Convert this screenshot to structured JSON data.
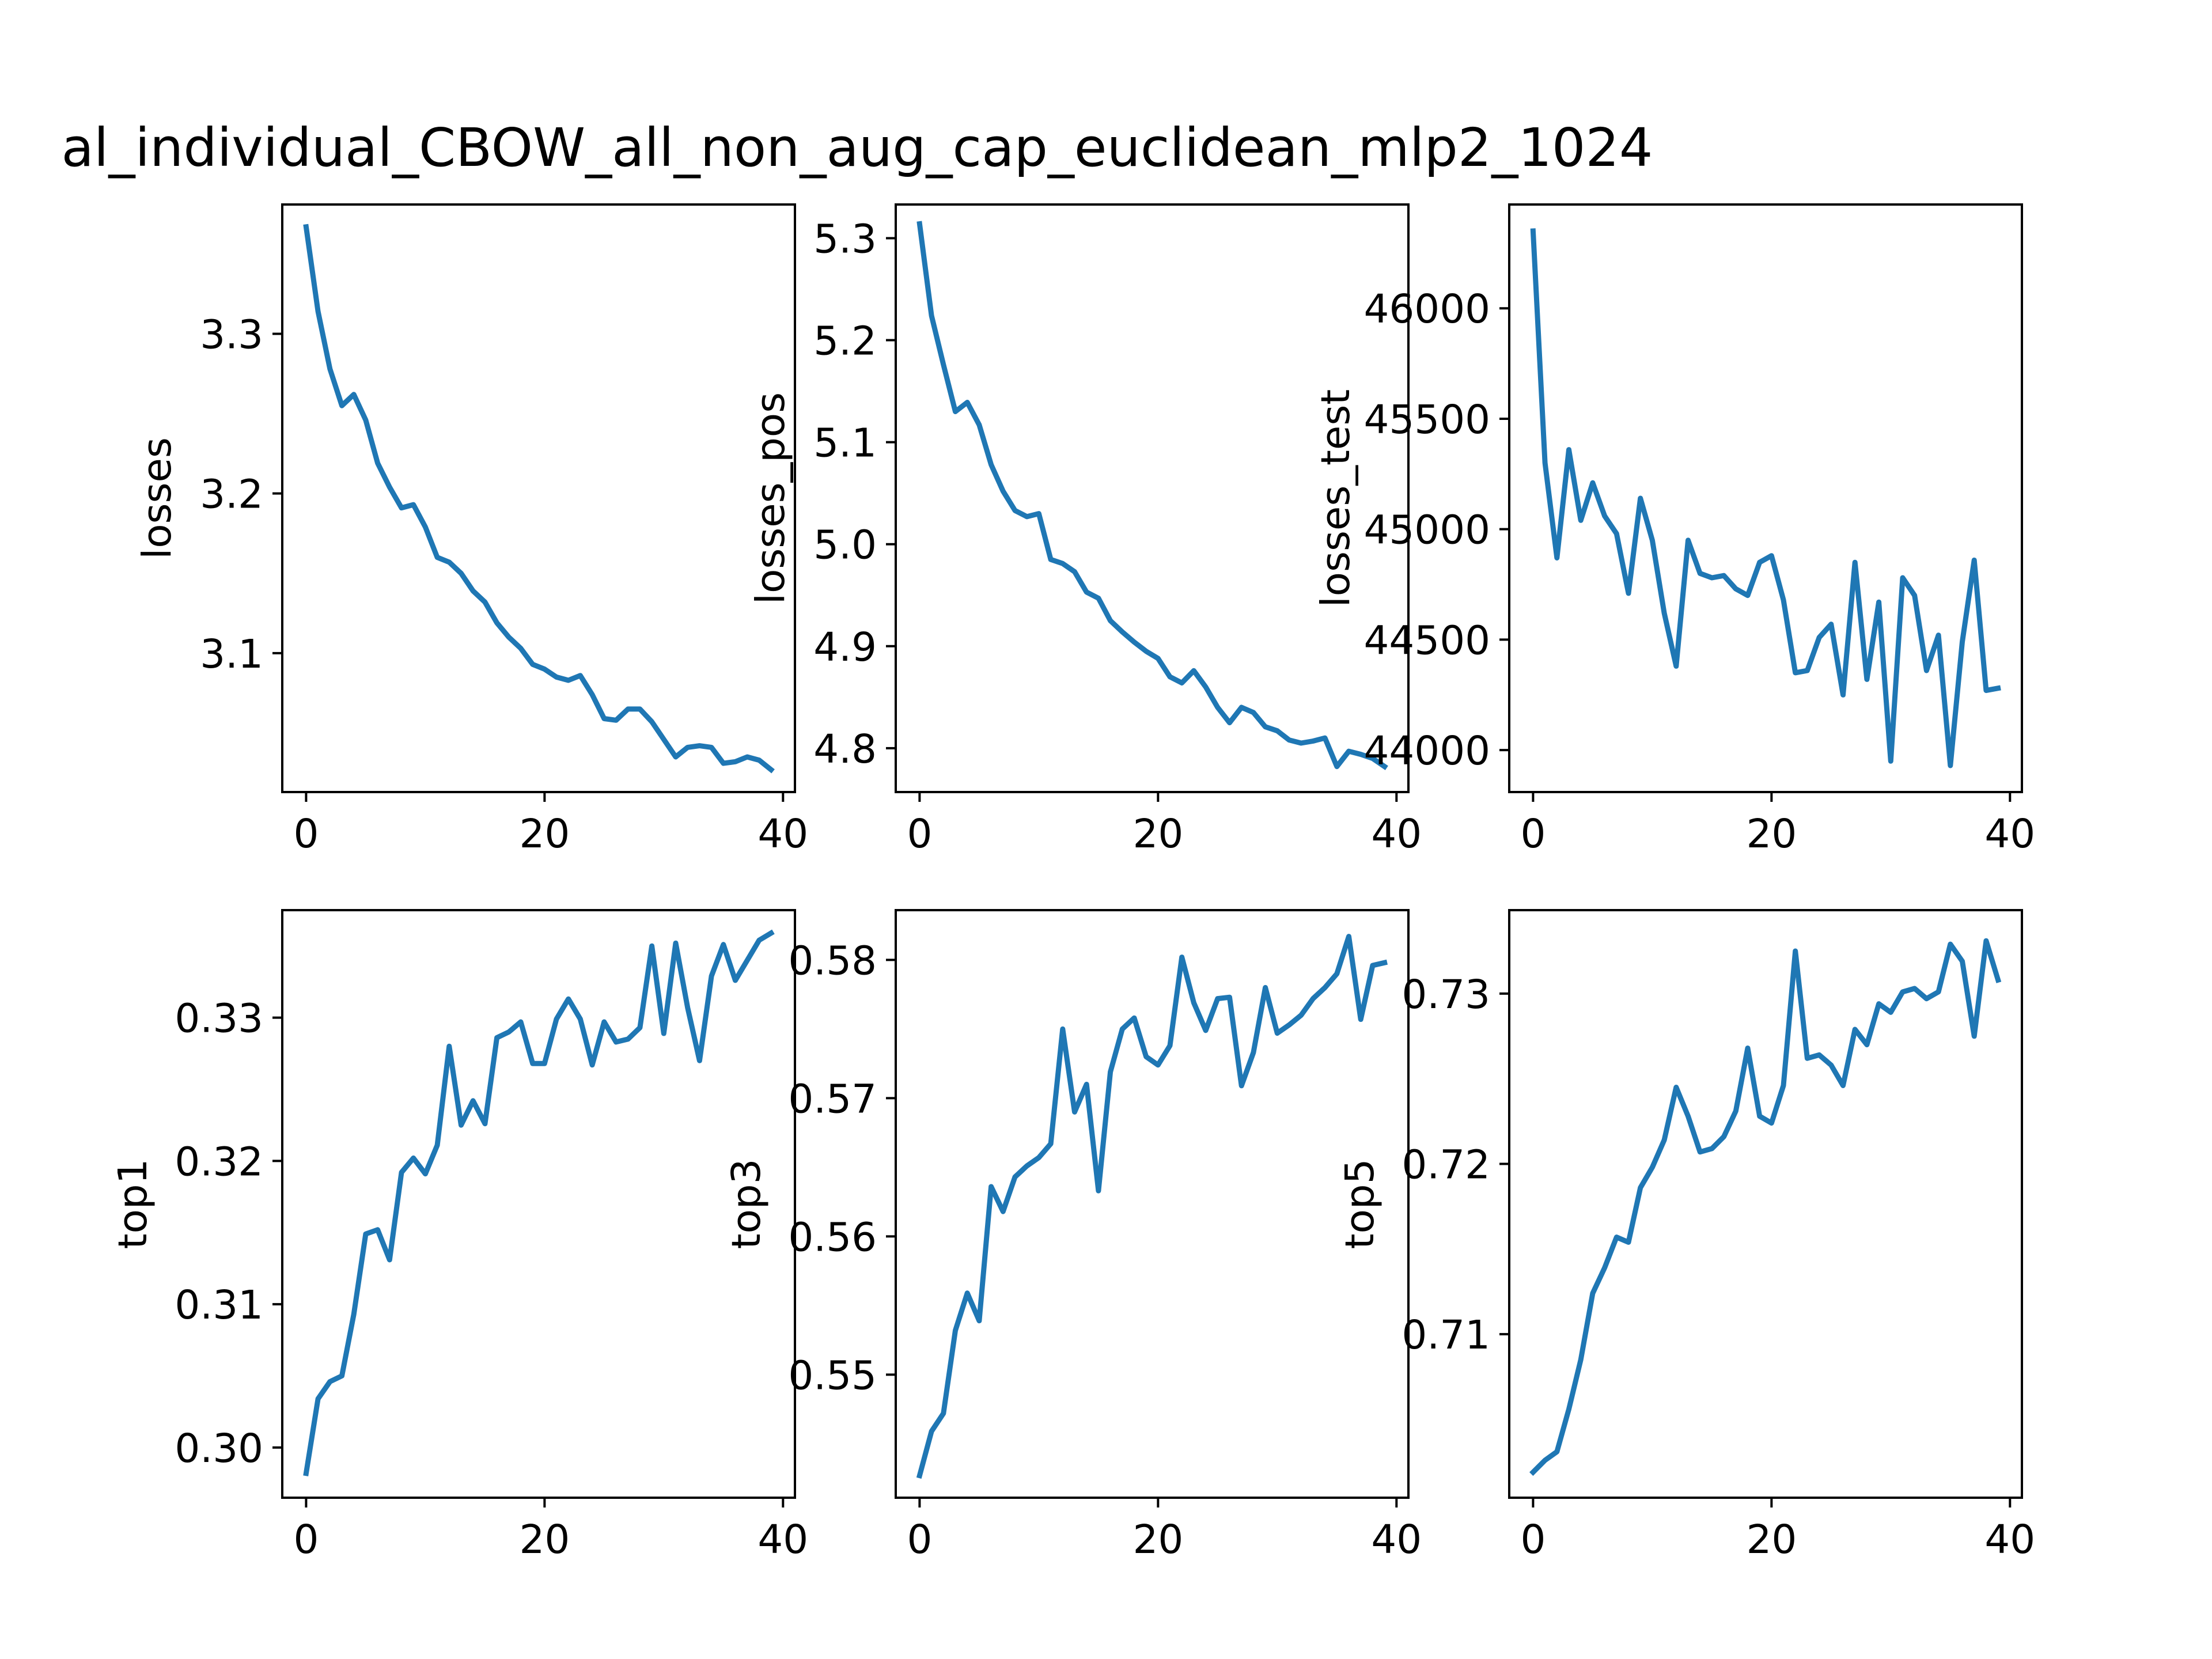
{
  "figure": {
    "title": "al_individual_CBOW_all_non_aug_cap_euclidean_mlp2_1024",
    "background": "#ffffff",
    "line_color": "#1f77b4"
  },
  "chart_data": [
    {
      "type": "line",
      "ylabel": "losses",
      "x": [
        0,
        1,
        2,
        3,
        4,
        5,
        6,
        7,
        8,
        9,
        10,
        11,
        12,
        13,
        14,
        15,
        16,
        17,
        18,
        19,
        20,
        21,
        22,
        23,
        24,
        25,
        26,
        27,
        28,
        29,
        30,
        31,
        32,
        33,
        34,
        35,
        36,
        37,
        38,
        39
      ],
      "values": [
        3.367,
        3.314,
        3.278,
        3.255,
        3.262,
        3.246,
        3.219,
        3.204,
        3.191,
        3.193,
        3.179,
        3.16,
        3.157,
        3.15,
        3.139,
        3.132,
        3.119,
        3.11,
        3.103,
        3.093,
        3.09,
        3.085,
        3.083,
        3.086,
        3.074,
        3.059,
        3.058,
        3.065,
        3.065,
        3.057,
        3.046,
        3.035,
        3.041,
        3.042,
        3.041,
        3.031,
        3.032,
        3.035,
        3.033,
        3.027
      ],
      "xlim": [
        -2,
        41
      ],
      "ylim": [
        3.013,
        3.381
      ],
      "xticks": [
        0,
        20,
        40
      ],
      "xtick_labels": [
        "0",
        "20",
        "40"
      ],
      "yticks": [
        3.1,
        3.2,
        3.3
      ],
      "ytick_labels": [
        "3.1",
        "3.2",
        "3.3"
      ],
      "grid": false
    },
    {
      "type": "line",
      "ylabel": "losses_pos",
      "x": [
        0,
        1,
        2,
        3,
        4,
        5,
        6,
        7,
        8,
        9,
        10,
        11,
        12,
        13,
        14,
        15,
        16,
        17,
        18,
        19,
        20,
        21,
        22,
        23,
        24,
        25,
        26,
        27,
        28,
        29,
        30,
        31,
        32,
        33,
        34,
        35,
        36,
        37,
        38,
        39
      ],
      "values": [
        5.314,
        5.224,
        5.176,
        5.13,
        5.139,
        5.117,
        5.078,
        5.052,
        5.033,
        5.027,
        5.03,
        4.985,
        4.981,
        4.973,
        4.953,
        4.947,
        4.925,
        4.914,
        4.904,
        4.895,
        4.888,
        4.87,
        4.864,
        4.876,
        4.86,
        4.84,
        4.825,
        4.84,
        4.835,
        4.821,
        4.817,
        4.808,
        4.805,
        4.807,
        4.81,
        4.782,
        4.797,
        4.794,
        4.79,
        4.782
      ],
      "xlim": [
        -2,
        41
      ],
      "ylim": [
        4.757,
        5.333
      ],
      "xticks": [
        0,
        20,
        40
      ],
      "xtick_labels": [
        "0",
        "20",
        "40"
      ],
      "yticks": [
        4.8,
        4.9,
        5.0,
        5.1,
        5.2,
        5.3
      ],
      "ytick_labels": [
        "4.8",
        "4.9",
        "5.0",
        "5.1",
        "5.2",
        "5.3"
      ],
      "grid": false
    },
    {
      "type": "line",
      "ylabel": "losses_test",
      "x": [
        0,
        1,
        2,
        3,
        4,
        5,
        6,
        7,
        8,
        9,
        10,
        11,
        12,
        13,
        14,
        15,
        16,
        17,
        18,
        19,
        20,
        21,
        22,
        23,
        24,
        25,
        26,
        27,
        28,
        29,
        30,
        31,
        32,
        33,
        34,
        35,
        36,
        37,
        38,
        39
      ],
      "values": [
        46350,
        45300,
        44870,
        45360,
        45040,
        45210,
        45060,
        44980,
        44710,
        45140,
        44950,
        44620,
        44380,
        44950,
        44800,
        44780,
        44790,
        44730,
        44700,
        44850,
        44880,
        44680,
        44350,
        44360,
        44510,
        44570,
        44250,
        44850,
        44320,
        44670,
        43950,
        44780,
        44700,
        44360,
        44520,
        43930,
        44490,
        44860,
        44270,
        44280
      ],
      "xlim": [
        -2,
        41
      ],
      "ylim": [
        43810,
        46470
      ],
      "xticks": [
        0,
        20,
        40
      ],
      "xtick_labels": [
        "0",
        "20",
        "40"
      ],
      "yticks": [
        44000,
        44500,
        45000,
        45500,
        46000
      ],
      "ytick_labels": [
        "44000",
        "44500",
        "45000",
        "45500",
        "46000"
      ],
      "grid": false
    },
    {
      "type": "line",
      "ylabel": "top1",
      "x": [
        0,
        1,
        2,
        3,
        4,
        5,
        6,
        7,
        8,
        9,
        10,
        11,
        12,
        13,
        14,
        15,
        16,
        17,
        18,
        19,
        20,
        21,
        22,
        23,
        24,
        25,
        26,
        27,
        28,
        29,
        30,
        31,
        32,
        33,
        34,
        35,
        36,
        37,
        38,
        39
      ],
      "values": [
        0.2982,
        0.3034,
        0.3046,
        0.305,
        0.3093,
        0.3149,
        0.3152,
        0.3131,
        0.3192,
        0.3202,
        0.3191,
        0.3211,
        0.328,
        0.3225,
        0.3242,
        0.3226,
        0.3286,
        0.329,
        0.3297,
        0.3268,
        0.3268,
        0.3299,
        0.3313,
        0.3299,
        0.3267,
        0.3297,
        0.3283,
        0.3285,
        0.3293,
        0.335,
        0.3289,
        0.3352,
        0.3307,
        0.327,
        0.3329,
        0.3351,
        0.3326,
        0.334,
        0.3354,
        0.3359
      ],
      "xlim": [
        -2,
        41
      ],
      "ylim": [
        0.2965,
        0.3375
      ],
      "xticks": [
        0,
        20,
        40
      ],
      "xtick_labels": [
        "0",
        "20",
        "40"
      ],
      "yticks": [
        0.3,
        0.31,
        0.32,
        0.33
      ],
      "ytick_labels": [
        "0.30",
        "0.31",
        "0.32",
        "0.33"
      ],
      "grid": false
    },
    {
      "type": "line",
      "ylabel": "top3",
      "x": [
        0,
        1,
        2,
        3,
        4,
        5,
        6,
        7,
        8,
        9,
        10,
        11,
        12,
        13,
        14,
        15,
        16,
        17,
        18,
        19,
        20,
        21,
        22,
        23,
        24,
        25,
        26,
        27,
        28,
        29,
        30,
        31,
        32,
        33,
        34,
        35,
        36,
        37,
        38,
        39
      ],
      "values": [
        0.5427,
        0.5459,
        0.5472,
        0.5532,
        0.5559,
        0.5539,
        0.5636,
        0.5618,
        0.5643,
        0.5651,
        0.5657,
        0.5667,
        0.575,
        0.569,
        0.571,
        0.5633,
        0.5719,
        0.575,
        0.5758,
        0.573,
        0.5724,
        0.5738,
        0.5802,
        0.5769,
        0.5749,
        0.5772,
        0.5773,
        0.5709,
        0.5733,
        0.578,
        0.5747,
        0.5753,
        0.576,
        0.5772,
        0.578,
        0.579,
        0.5817,
        0.5757,
        0.5796,
        0.5798
      ],
      "xlim": [
        -2,
        41
      ],
      "ylim": [
        0.5411,
        0.5836
      ],
      "xticks": [
        0,
        20,
        40
      ],
      "xtick_labels": [
        "0",
        "20",
        "40"
      ],
      "yticks": [
        0.55,
        0.56,
        0.57,
        0.58
      ],
      "ytick_labels": [
        "0.55",
        "0.56",
        "0.57",
        "0.58"
      ],
      "grid": false
    },
    {
      "type": "line",
      "ylabel": "top5",
      "x": [
        0,
        1,
        2,
        3,
        4,
        5,
        6,
        7,
        8,
        9,
        10,
        11,
        12,
        13,
        14,
        15,
        16,
        17,
        18,
        19,
        20,
        21,
        22,
        23,
        24,
        25,
        26,
        27,
        28,
        29,
        30,
        31,
        32,
        33,
        34,
        35,
        36,
        37,
        38,
        39
      ],
      "values": [
        0.7019,
        0.7026,
        0.7031,
        0.7056,
        0.7085,
        0.7124,
        0.7139,
        0.7157,
        0.7154,
        0.7186,
        0.7198,
        0.7214,
        0.7245,
        0.7228,
        0.7207,
        0.7209,
        0.7216,
        0.7231,
        0.7268,
        0.7228,
        0.7224,
        0.7246,
        0.7325,
        0.7262,
        0.7264,
        0.7258,
        0.7246,
        0.7279,
        0.727,
        0.7294,
        0.7289,
        0.7301,
        0.7303,
        0.7297,
        0.7301,
        0.7329,
        0.7319,
        0.7275,
        0.7331,
        0.7308
      ],
      "xlim": [
        -2,
        41
      ],
      "ylim": [
        0.7004,
        0.7349
      ],
      "xticks": [
        0,
        20,
        40
      ],
      "xtick_labels": [
        "0",
        "20",
        "40"
      ],
      "yticks": [
        0.71,
        0.72,
        0.73
      ],
      "ytick_labels": [
        "0.71",
        "0.72",
        "0.73"
      ],
      "grid": false
    }
  ]
}
